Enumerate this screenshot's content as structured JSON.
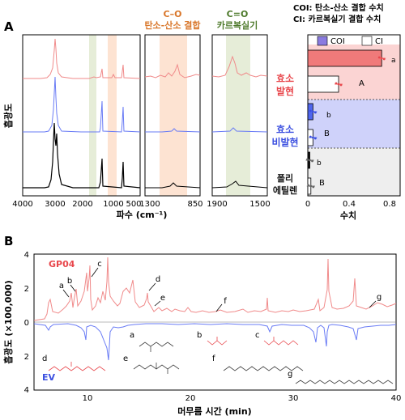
{
  "panelA": {
    "label": "A",
    "legend_lines": [
      "COI: 탄소-산소 결합 수치",
      "CI: 카르복실기 결합 수치"
    ],
    "ylabel": "흡광도",
    "xlabel": "파수 (cm⁻¹)",
    "region_co_title": "C–O",
    "region_co_subtitle": "탄소-산소 결합",
    "region_cdo_title": "C=O",
    "region_cdo_subtitle": "카르복실기",
    "sample_labels": [
      {
        "line1": "효소",
        "line2": "발현",
        "color": "#e8474c"
      },
      {
        "line1": "효소",
        "line2": "비발현",
        "color": "#3b4fe0"
      },
      {
        "line1": "폴리",
        "line2": "에틸렌",
        "color": "#111111"
      }
    ],
    "ticks_left": [
      "4000",
      "3000",
      "2000",
      "1000",
      "500"
    ],
    "ticks_mid": [
      "1300",
      "850"
    ],
    "ticks_right": [
      "1900",
      "1500"
    ],
    "colors": {
      "enzyme_expr": "#f08a8a",
      "enzyme_nonexpr": "#6a7cf5",
      "pe": "#000000",
      "co_band": "#fde3d2",
      "cdo_band": "#e6edd8"
    }
  },
  "barchart": {
    "xlabel": "수치",
    "legend": [
      "COI",
      "CI"
    ],
    "xticks": [
      "0",
      "0.4",
      "0.8"
    ],
    "letters": [
      "a",
      "A",
      "b",
      "B",
      "b",
      "B"
    ]
  },
  "panelB": {
    "label": "B",
    "ylabel": "흡광도 (×100,000)",
    "xlabel": "머무름 시간 (min)",
    "series_top": "GP04",
    "series_bottom": "EV",
    "yticks_top": [
      "4",
      "2",
      "0"
    ],
    "yticks_bottom": [
      "2",
      "4"
    ],
    "xticks": [
      "10",
      "20",
      "30",
      "40"
    ],
    "peaks": [
      "a",
      "b",
      "c",
      "d",
      "e",
      "f",
      "g"
    ],
    "structures": [
      "a",
      "b",
      "c",
      "d",
      "e",
      "f",
      "g"
    ]
  },
  "chart_data": [
    {
      "type": "bar",
      "title": "",
      "xlabel": "수치",
      "xlim": [
        0,
        0.9
      ],
      "categories": [
        "효소 발현",
        "효소 비발현",
        "폴리 에틸렌"
      ],
      "series": [
        {
          "name": "COI",
          "values": [
            0.72,
            0.05,
            0.02
          ]
        },
        {
          "name": "CI",
          "values": [
            0.3,
            0.05,
            0.03
          ]
        }
      ]
    }
  ]
}
